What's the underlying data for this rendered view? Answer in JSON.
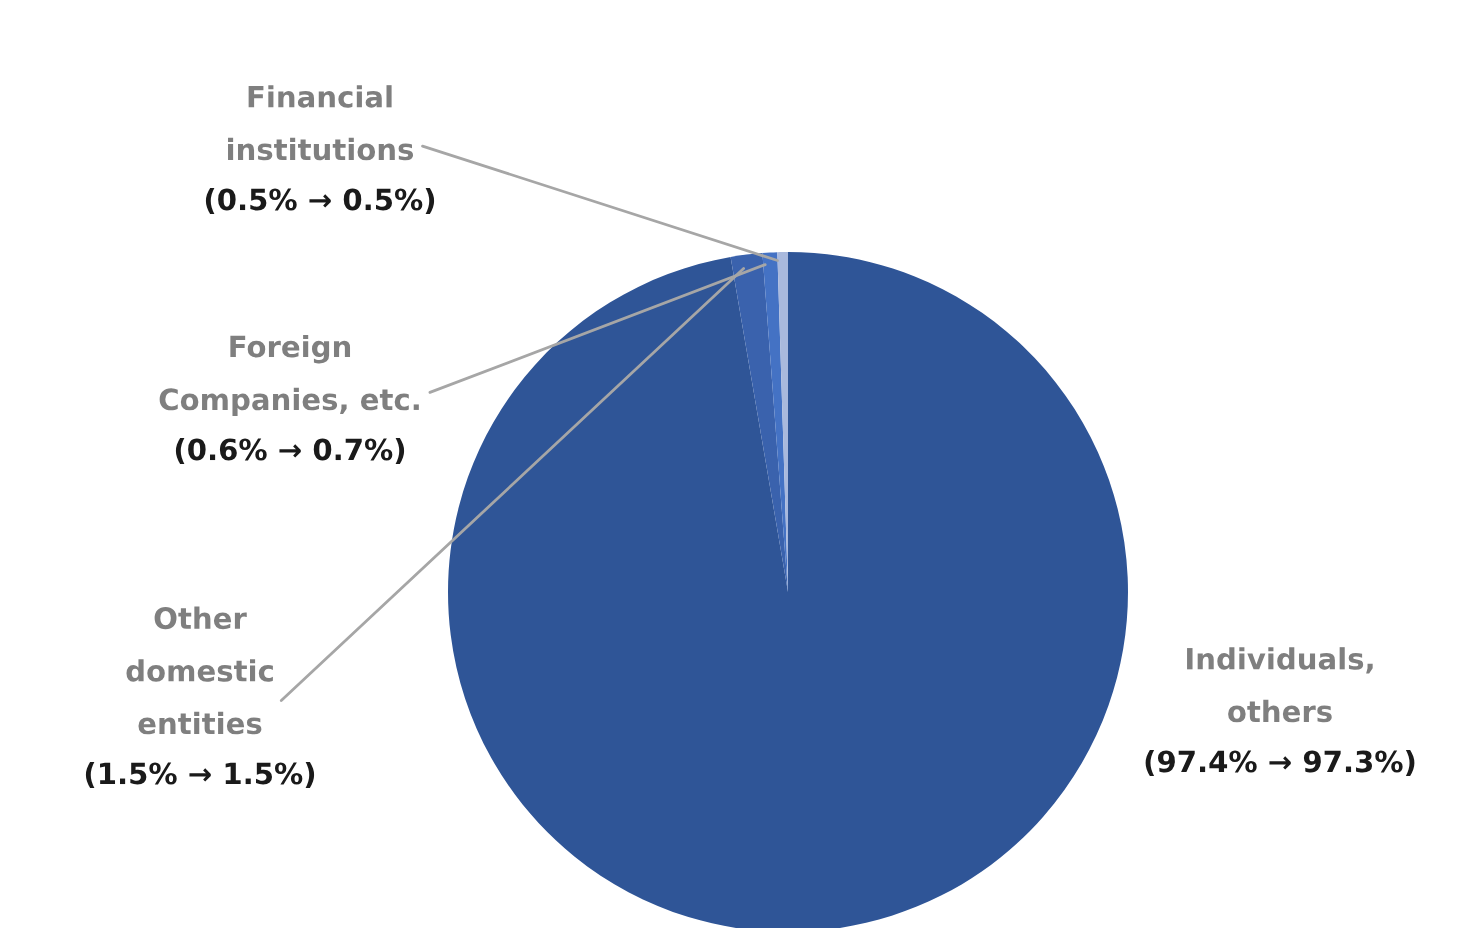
{
  "chart_data": {
    "type": "pie",
    "categories": [
      "Individuals,\nothers",
      "Other\ndomestic\nentities",
      "Foreign\nCompanies, etc.",
      "Financial\ninstitutions"
    ],
    "values": [
      97.3,
      1.5,
      0.7,
      0.5
    ],
    "colors": [
      "#2f5597",
      "#3a62ad",
      "#4472c4",
      "#a9b9dd"
    ],
    "value_labels": [
      "(97.4% → 97.3%)",
      "(1.5% → 1.5%)",
      "(0.6% → 0.7%)",
      "(0.5% → 0.5%)"
    ],
    "legend": false
  }
}
